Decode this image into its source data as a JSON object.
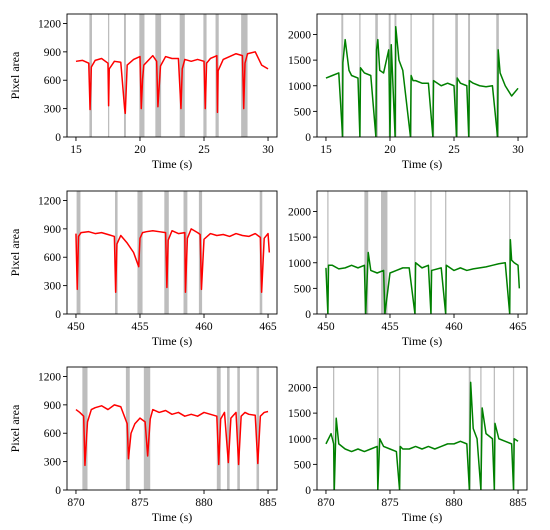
{
  "chart_data": [
    {
      "type": "line",
      "xlabel": "Time (s)",
      "ylabel": "Pixel area",
      "xlim": [
        14.3,
        30.7
      ],
      "ylim": [
        0,
        1300
      ],
      "xticks": [
        15,
        20,
        25,
        30
      ],
      "yticks": [
        0,
        300,
        600,
        900,
        1200
      ],
      "color": "#ff0000",
      "shaded_intervals": [
        [
          16.05,
          16.25
        ],
        [
          17.5,
          17.6
        ],
        [
          18.75,
          18.9
        ],
        [
          19.95,
          20.35
        ],
        [
          21.2,
          21.65
        ],
        [
          23.1,
          23.5
        ],
        [
          24.95,
          25.2
        ],
        [
          25.9,
          26.15
        ],
        [
          27.9,
          28.4
        ]
      ],
      "series": [
        {
          "x": [
            15,
            15.5,
            16,
            16.1,
            16.2,
            16.5,
            17,
            17.5,
            17.55,
            17.6,
            18,
            18.5,
            18.8,
            18.85,
            19,
            19.5,
            20,
            20.1,
            20.2,
            20.3,
            21,
            21.3,
            21.4,
            21.6,
            22,
            22.5,
            23,
            23.2,
            23.3,
            23.5,
            24,
            24.5,
            25,
            25.1,
            25.2,
            25.5,
            26,
            26.05,
            26.1,
            26.5,
            27,
            27.5,
            28,
            28.1,
            28.2,
            28.4,
            29,
            29.5,
            30
          ],
          "y": [
            800,
            810,
            780,
            290,
            740,
            810,
            830,
            780,
            330,
            720,
            800,
            790,
            300,
            250,
            760,
            820,
            850,
            300,
            610,
            760,
            860,
            800,
            320,
            750,
            850,
            830,
            830,
            300,
            720,
            820,
            800,
            820,
            800,
            300,
            780,
            830,
            860,
            260,
            700,
            820,
            850,
            880,
            860,
            300,
            780,
            880,
            900,
            760,
            720
          ]
        }
      ]
    },
    {
      "type": "line",
      "xlim": [
        14.3,
        30.7
      ],
      "ylim": [
        0,
        2400
      ],
      "xticks": [
        15,
        20,
        25,
        30
      ],
      "yticks": [
        0,
        500,
        1000,
        1500,
        2000
      ],
      "color": "#008000",
      "shaded_intervals": [
        [
          16.2,
          16.35
        ],
        [
          17.6,
          17.7
        ],
        [
          18.85,
          19.05
        ],
        [
          19.9,
          20.05
        ],
        [
          20.35,
          20.5
        ],
        [
          21.6,
          21.7
        ],
        [
          23.3,
          23.45
        ],
        [
          25.1,
          25.3
        ],
        [
          26.1,
          26.25
        ],
        [
          28.3,
          28.5
        ]
      ],
      "series": [
        {
          "x": [
            15,
            15.5,
            16,
            16.3,
            16.32,
            16.5,
            16.8,
            17,
            17.5,
            17.65,
            17.7,
            18,
            18.5,
            18.9,
            18.95,
            19.05,
            19.2,
            19.5,
            19.9,
            20,
            20.1,
            20.4,
            20.45,
            20.7,
            21,
            21.6,
            21.65,
            21.8,
            22,
            22.5,
            23,
            23.35,
            23.4,
            24,
            24.5,
            25,
            25.2,
            25.25,
            25.5,
            26,
            26.15,
            26.2,
            26.5,
            27,
            27.5,
            28,
            28.4,
            28.45,
            28.6,
            29,
            29.5,
            30
          ],
          "y": [
            1150,
            1200,
            1250,
            0,
            1450,
            1900,
            1300,
            1200,
            1150,
            0,
            1350,
            1250,
            1200,
            0,
            1700,
            1900,
            1300,
            1250,
            1700,
            0,
            1800,
            0,
            2150,
            1500,
            1300,
            0,
            1200,
            1100,
            1100,
            1050,
            1050,
            0,
            1100,
            1000,
            1050,
            1000,
            0,
            1150,
            1050,
            1000,
            0,
            1100,
            1050,
            1000,
            980,
            1000,
            0,
            1700,
            1250,
            1000,
            800,
            950
          ]
        }
      ]
    },
    {
      "type": "line",
      "xlabel": "Time (s)",
      "ylabel": "Pixel area",
      "xlim": [
        449.3,
        465.7
      ],
      "ylim": [
        0,
        1300
      ],
      "xticks": [
        450,
        455,
        460,
        465
      ],
      "yticks": [
        0,
        300,
        600,
        900,
        1200
      ],
      "color": "#ff0000",
      "shaded_intervals": [
        [
          450.05,
          450.35
        ],
        [
          453.05,
          453.25
        ],
        [
          454.8,
          455.2
        ],
        [
          456.9,
          457.25
        ],
        [
          458.4,
          458.7
        ],
        [
          459.6,
          459.85
        ],
        [
          464.35,
          464.55
        ]
      ],
      "series": [
        {
          "x": [
            450,
            450.1,
            450.2,
            450.4,
            451,
            451.5,
            452,
            452.5,
            453,
            453.1,
            453.2,
            453.5,
            454,
            454.5,
            454.9,
            455,
            455.2,
            455.5,
            456,
            456.5,
            457,
            457.1,
            457.2,
            457.5,
            458,
            458.5,
            458.55,
            458.7,
            459,
            459.5,
            459.7,
            459.8,
            460,
            460.5,
            461,
            461.5,
            462,
            462.5,
            463,
            463.5,
            464,
            464.4,
            464.5,
            464.7,
            465,
            465.1
          ],
          "y": [
            850,
            260,
            820,
            860,
            870,
            850,
            860,
            840,
            820,
            230,
            740,
            830,
            750,
            650,
            500,
            800,
            860,
            870,
            880,
            870,
            860,
            280,
            780,
            880,
            850,
            860,
            230,
            800,
            900,
            860,
            840,
            260,
            790,
            850,
            830,
            840,
            820,
            850,
            830,
            820,
            850,
            810,
            230,
            800,
            850,
            650
          ]
        }
      ]
    },
    {
      "type": "line",
      "xlim": [
        449.3,
        465.7
      ],
      "ylim": [
        0,
        2400
      ],
      "xticks": [
        450,
        455,
        460,
        465
      ],
      "yticks": [
        0,
        500,
        1000,
        1500,
        2000
      ],
      "color": "#008000",
      "shaded_intervals": [
        [
          450.1,
          450.2
        ],
        [
          453.0,
          453.3
        ],
        [
          454.3,
          454.8
        ],
        [
          456.9,
          457.0
        ],
        [
          458.15,
          458.25
        ],
        [
          459.3,
          459.4
        ],
        [
          464.3,
          464.4
        ]
      ],
      "series": [
        {
          "x": [
            450,
            450.15,
            450.2,
            450.5,
            451,
            451.5,
            452,
            452.5,
            453,
            453.1,
            453.3,
            453.5,
            454,
            454.5,
            454.6,
            455,
            455.5,
            456,
            456.5,
            456.95,
            457,
            457.5,
            458,
            458.2,
            458.25,
            459,
            459.35,
            459.4,
            460,
            460.5,
            461,
            461.5,
            462,
            462.5,
            463,
            463.5,
            464,
            464.35,
            464.4,
            464.5,
            464.7,
            465,
            465.1
          ],
          "y": [
            900,
            0,
            950,
            950,
            880,
            900,
            950,
            900,
            950,
            0,
            1200,
            850,
            800,
            850,
            0,
            800,
            850,
            900,
            900,
            0,
            1000,
            900,
            950,
            0,
            850,
            900,
            0,
            950,
            850,
            900,
            850,
            880,
            900,
            920,
            950,
            980,
            1000,
            0,
            1450,
            1050,
            1000,
            950,
            500
          ]
        }
      ]
    },
    {
      "type": "line",
      "xlabel": "Time (s)",
      "ylabel": "Pixel area",
      "xlim": [
        869.3,
        885.7
      ],
      "ylim": [
        0,
        1300
      ],
      "xticks": [
        870,
        875,
        880,
        885
      ],
      "yticks": [
        0,
        300,
        600,
        900,
        1200
      ],
      "color": "#ff0000",
      "shaded_intervals": [
        [
          870.5,
          870.9
        ],
        [
          873.9,
          874.2
        ],
        [
          875.3,
          875.8
        ],
        [
          881.0,
          881.3
        ],
        [
          881.8,
          882.0
        ],
        [
          882.6,
          882.8
        ],
        [
          884.1,
          884.3
        ]
      ],
      "series": [
        {
          "x": [
            870,
            870.3,
            870.6,
            870.7,
            870.9,
            871.2,
            871.5,
            872,
            872.5,
            873,
            873.5,
            874,
            874.1,
            874.3,
            874.6,
            875,
            875.4,
            875.6,
            875.8,
            876,
            876.5,
            877,
            877.5,
            878,
            878.5,
            879,
            879.5,
            880,
            880.5,
            881,
            881.15,
            881.3,
            881.6,
            881.9,
            882.1,
            882.5,
            882.7,
            882.9,
            883.2,
            883.5,
            884,
            884.2,
            884.4,
            884.7,
            885
          ],
          "y": [
            850,
            820,
            780,
            260,
            720,
            850,
            870,
            890,
            850,
            900,
            880,
            700,
            330,
            600,
            700,
            760,
            720,
            360,
            750,
            850,
            820,
            840,
            800,
            820,
            780,
            800,
            780,
            820,
            800,
            780,
            270,
            750,
            820,
            290,
            760,
            820,
            270,
            780,
            820,
            800,
            790,
            280,
            780,
            820,
            830
          ]
        }
      ]
    },
    {
      "type": "line",
      "xlim": [
        869.3,
        885.7
      ],
      "ylim": [
        0,
        2400
      ],
      "xticks": [
        870,
        875,
        880,
        885
      ],
      "yticks": [
        0,
        500,
        1000,
        1500,
        2000
      ],
      "color": "#008000",
      "shaded_intervals": [
        [
          870.55,
          870.65
        ],
        [
          874.0,
          874.1
        ],
        [
          875.7,
          875.8
        ],
        [
          881.15,
          881.3
        ],
        [
          882.05,
          882.15
        ],
        [
          883.1,
          883.2
        ],
        [
          884.6,
          884.7
        ]
      ],
      "series": [
        {
          "x": [
            870,
            870.4,
            870.6,
            870.65,
            870.8,
            871,
            871.5,
            872,
            872.5,
            873,
            873.5,
            874,
            874.05,
            874.2,
            874.5,
            875,
            875.5,
            875.75,
            875.8,
            876,
            876.5,
            877,
            877.5,
            878,
            878.5,
            879,
            879.5,
            880,
            880.5,
            881,
            881.2,
            881.3,
            881.5,
            881.8,
            882.1,
            882.2,
            882.5,
            883,
            883.15,
            883.2,
            883.5,
            884,
            884.5,
            884.65,
            884.7,
            885
          ],
          "y": [
            900,
            1100,
            900,
            0,
            1400,
            900,
            800,
            750,
            800,
            750,
            800,
            850,
            0,
            1000,
            850,
            800,
            750,
            0,
            850,
            800,
            800,
            850,
            800,
            850,
            800,
            850,
            900,
            900,
            950,
            900,
            0,
            2100,
            1200,
            1000,
            0,
            1600,
            1100,
            1000,
            0,
            1300,
            1000,
            950,
            900,
            0,
            1000,
            950
          ]
        }
      ]
    }
  ]
}
